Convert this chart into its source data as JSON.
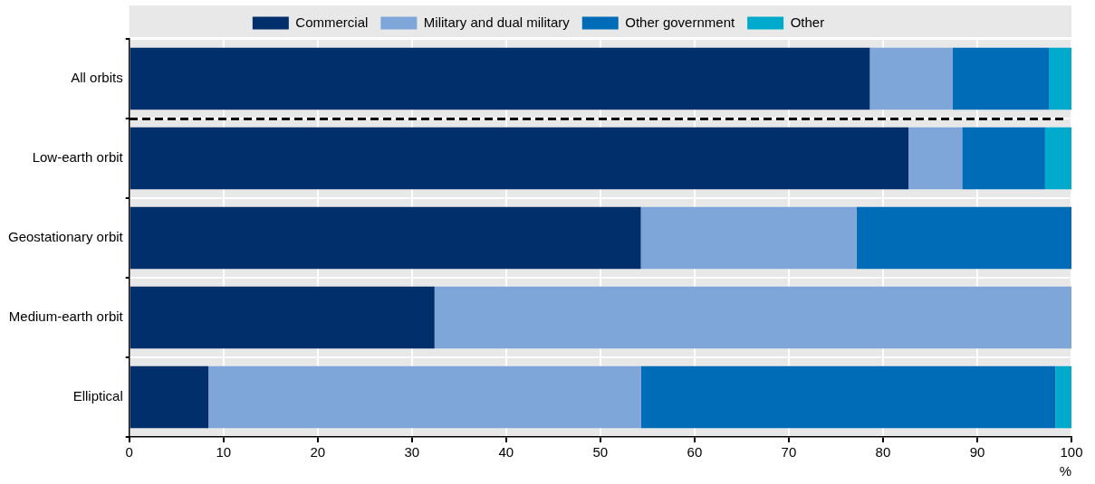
{
  "chart_data": {
    "type": "bar",
    "orientation": "horizontal",
    "stacked": true,
    "categories": [
      "All orbits",
      "Low-earth orbit",
      "Geostationary orbit",
      "Medium-earth orbit",
      "Elliptical"
    ],
    "series": [
      {
        "name": "Commercial",
        "color": "#002f6c",
        "values": [
          78.6,
          82.7,
          54.3,
          32.4,
          8.4
        ]
      },
      {
        "name": "Military and dual military",
        "color": "#7fa6d9",
        "values": [
          8.8,
          5.7,
          22.9,
          67.6,
          45.9
        ]
      },
      {
        "name": "Other government",
        "color": "#006bb6",
        "values": [
          10.2,
          8.8,
          22.8,
          null,
          44.0
        ]
      },
      {
        "name": "Other",
        "color": "#00aacc",
        "values": [
          2.4,
          2.8,
          null,
          null,
          1.7
        ]
      }
    ],
    "xlabel": "%",
    "xlim": [
      0,
      100
    ],
    "xticks": [
      0,
      10,
      20,
      30,
      40,
      50,
      60,
      70,
      80,
      90,
      100
    ],
    "grid": true,
    "legend": "top"
  }
}
